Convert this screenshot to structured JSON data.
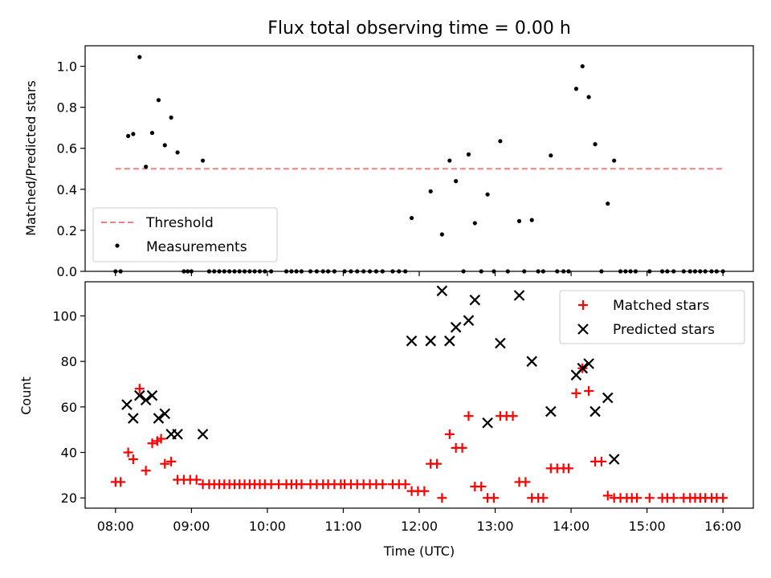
{
  "colors": {
    "measurements": "#000000",
    "threshold": "#f08080",
    "matched": "#ff0000",
    "predicted": "#000000"
  },
  "chart_data": [
    {
      "type": "scatter",
      "title": "Flux total observing time = 0.00 h",
      "xlabel": "",
      "ylabel": "Matched/Predicted stars",
      "xlim": [
        7.6,
        16.4
      ],
      "ylim": [
        0,
        1.1
      ],
      "yticks": [
        0,
        0.2,
        0.4,
        0.6,
        0.8,
        1.0
      ],
      "yticklabels": [
        "0.0",
        "0.2",
        "0.4",
        "0.6",
        "0.8",
        "1.0"
      ],
      "legend_placement": "lower-left",
      "threshold": {
        "name": "Threshold",
        "y": 0.5,
        "x_range": [
          8.0,
          16.0
        ],
        "style": "dashed"
      },
      "series": [
        {
          "name": "Measurements",
          "points": [
            [
              8.167,
              0.66
            ],
            [
              8.233,
              0.67
            ],
            [
              8.317,
              1.045
            ],
            [
              8.4,
              0.51
            ],
            [
              8.483,
              0.675
            ],
            [
              8.567,
              0.835
            ],
            [
              8.65,
              0.615
            ],
            [
              8.733,
              0.75
            ],
            [
              8.817,
              0.58
            ],
            [
              9.15,
              0.54
            ],
            [
              11.9,
              0.26
            ],
            [
              12.15,
              0.39
            ],
            [
              12.3,
              0.18
            ],
            [
              12.4,
              0.54
            ],
            [
              12.483,
              0.44
            ],
            [
              12.65,
              0.57
            ],
            [
              12.733,
              0.235
            ],
            [
              12.9,
              0.375
            ],
            [
              13.067,
              0.635
            ],
            [
              13.317,
              0.245
            ],
            [
              13.483,
              0.25
            ],
            [
              13.733,
              0.565
            ],
            [
              14.067,
              0.89
            ],
            [
              14.15,
              1.0
            ],
            [
              14.233,
              0.85
            ],
            [
              14.317,
              0.62
            ],
            [
              14.483,
              0.33
            ],
            [
              14.567,
              0.54
            ],
            [
              8.0,
              0
            ],
            [
              8.067,
              0
            ],
            [
              8.9,
              0
            ],
            [
              8.95,
              0
            ],
            [
              9.0,
              0
            ],
            [
              9.233,
              0
            ],
            [
              9.3,
              0
            ],
            [
              9.367,
              0
            ],
            [
              9.433,
              0
            ],
            [
              9.5,
              0
            ],
            [
              9.567,
              0
            ],
            [
              9.633,
              0
            ],
            [
              9.7,
              0
            ],
            [
              9.767,
              0
            ],
            [
              9.833,
              0
            ],
            [
              9.9,
              0
            ],
            [
              9.967,
              0
            ],
            [
              10.05,
              0
            ],
            [
              10.25,
              0
            ],
            [
              10.317,
              0
            ],
            [
              10.383,
              0
            ],
            [
              10.45,
              0
            ],
            [
              10.567,
              0
            ],
            [
              10.65,
              0
            ],
            [
              10.733,
              0
            ],
            [
              10.8,
              0
            ],
            [
              10.883,
              0
            ],
            [
              11.017,
              0
            ],
            [
              11.1,
              0
            ],
            [
              11.183,
              0
            ],
            [
              11.267,
              0
            ],
            [
              11.35,
              0
            ],
            [
              11.433,
              0
            ],
            [
              11.517,
              0
            ],
            [
              11.65,
              0
            ],
            [
              11.733,
              0
            ],
            [
              11.817,
              0
            ],
            [
              12.583,
              0
            ],
            [
              12.817,
              0
            ],
            [
              12.983,
              0
            ],
            [
              13.167,
              0
            ],
            [
              13.383,
              0
            ],
            [
              13.567,
              0
            ],
            [
              13.633,
              0
            ],
            [
              13.817,
              0
            ],
            [
              13.9,
              0
            ],
            [
              13.967,
              0
            ],
            [
              14.4,
              0
            ],
            [
              14.65,
              0
            ],
            [
              14.717,
              0
            ],
            [
              14.783,
              0
            ],
            [
              14.85,
              0
            ],
            [
              15.033,
              0
            ],
            [
              15.2,
              0
            ],
            [
              15.267,
              0
            ],
            [
              15.35,
              0
            ],
            [
              15.483,
              0
            ],
            [
              15.567,
              0
            ],
            [
              15.633,
              0
            ],
            [
              15.7,
              0
            ],
            [
              15.767,
              0
            ],
            [
              15.85,
              0
            ],
            [
              15.917,
              0
            ],
            [
              16.0,
              0
            ]
          ]
        }
      ]
    },
    {
      "type": "scatter",
      "title": "",
      "xlabel": "Time (UTC)",
      "ylabel": "Count",
      "xlim": [
        7.6,
        16.4
      ],
      "ylim": [
        15.5,
        115
      ],
      "yticks": [
        20,
        40,
        60,
        80,
        100
      ],
      "yticklabels": [
        "20",
        "40",
        "60",
        "80",
        "100"
      ],
      "xticks": [
        8,
        9,
        10,
        11,
        12,
        13,
        14,
        15,
        16
      ],
      "xticklabels": [
        "08:00",
        "09:00",
        "10:00",
        "11:00",
        "12:00",
        "13:00",
        "14:00",
        "15:00",
        "16:00"
      ],
      "legend_placement": "upper-right",
      "series": [
        {
          "name": "Matched stars",
          "marker": "+",
          "points": [
            [
              8.0,
              27
            ],
            [
              8.067,
              27
            ],
            [
              8.167,
              40
            ],
            [
              8.233,
              37
            ],
            [
              8.317,
              68
            ],
            [
              8.4,
              32
            ],
            [
              8.483,
              44
            ],
            [
              8.55,
              45
            ],
            [
              8.6,
              46
            ],
            [
              8.65,
              35
            ],
            [
              8.733,
              36
            ],
            [
              8.817,
              28
            ],
            [
              8.9,
              28
            ],
            [
              8.983,
              28
            ],
            [
              9.067,
              28
            ],
            [
              9.15,
              26
            ],
            [
              9.233,
              26
            ],
            [
              9.3,
              26
            ],
            [
              9.367,
              26
            ],
            [
              9.433,
              26
            ],
            [
              9.5,
              26
            ],
            [
              9.567,
              26
            ],
            [
              9.633,
              26
            ],
            [
              9.7,
              26
            ],
            [
              9.767,
              26
            ],
            [
              9.833,
              26
            ],
            [
              9.9,
              26
            ],
            [
              9.967,
              26
            ],
            [
              10.05,
              26
            ],
            [
              10.15,
              26
            ],
            [
              10.25,
              26
            ],
            [
              10.317,
              26
            ],
            [
              10.383,
              26
            ],
            [
              10.45,
              26
            ],
            [
              10.567,
              26
            ],
            [
              10.65,
              26
            ],
            [
              10.733,
              26
            ],
            [
              10.8,
              26
            ],
            [
              10.883,
              26
            ],
            [
              10.967,
              26
            ],
            [
              11.017,
              26
            ],
            [
              11.1,
              26
            ],
            [
              11.183,
              26
            ],
            [
              11.267,
              26
            ],
            [
              11.35,
              26
            ],
            [
              11.433,
              26
            ],
            [
              11.517,
              26
            ],
            [
              11.65,
              26
            ],
            [
              11.733,
              26
            ],
            [
              11.817,
              26
            ],
            [
              11.9,
              23
            ],
            [
              11.983,
              23
            ],
            [
              12.067,
              23
            ],
            [
              12.15,
              35
            ],
            [
              12.233,
              35
            ],
            [
              12.3,
              20
            ],
            [
              12.4,
              48
            ],
            [
              12.483,
              42
            ],
            [
              12.567,
              42
            ],
            [
              12.65,
              56
            ],
            [
              12.733,
              25
            ],
            [
              12.817,
              25
            ],
            [
              12.9,
              20
            ],
            [
              12.983,
              20
            ],
            [
              13.067,
              56
            ],
            [
              13.15,
              56
            ],
            [
              13.233,
              56
            ],
            [
              13.317,
              27
            ],
            [
              13.4,
              27
            ],
            [
              13.483,
              20
            ],
            [
              13.567,
              20
            ],
            [
              13.633,
              20
            ],
            [
              13.733,
              33
            ],
            [
              13.817,
              33
            ],
            [
              13.9,
              33
            ],
            [
              13.967,
              33
            ],
            [
              14.067,
              66
            ],
            [
              14.15,
              77
            ],
            [
              14.233,
              67
            ],
            [
              14.317,
              36
            ],
            [
              14.4,
              36
            ],
            [
              14.483,
              21
            ],
            [
              14.567,
              20
            ],
            [
              14.65,
              20
            ],
            [
              14.733,
              20
            ],
            [
              14.8,
              20
            ],
            [
              14.867,
              20
            ],
            [
              15.033,
              20
            ],
            [
              15.2,
              20
            ],
            [
              15.267,
              20
            ],
            [
              15.35,
              20
            ],
            [
              15.483,
              20
            ],
            [
              15.567,
              20
            ],
            [
              15.633,
              20
            ],
            [
              15.7,
              20
            ],
            [
              15.767,
              20
            ],
            [
              15.85,
              20
            ],
            [
              15.917,
              20
            ],
            [
              16.0,
              20
            ]
          ]
        },
        {
          "name": "Predicted stars",
          "marker": "x",
          "points": [
            [
              8.15,
              61
            ],
            [
              8.233,
              55
            ],
            [
              8.317,
              65
            ],
            [
              8.4,
              63
            ],
            [
              8.483,
              65
            ],
            [
              8.567,
              55
            ],
            [
              8.65,
              57
            ],
            [
              8.733,
              48
            ],
            [
              8.817,
              48
            ],
            [
              9.15,
              48
            ],
            [
              11.9,
              89
            ],
            [
              12.15,
              89
            ],
            [
              12.3,
              111
            ],
            [
              12.4,
              89
            ],
            [
              12.483,
              95
            ],
            [
              12.65,
              98
            ],
            [
              12.733,
              107
            ],
            [
              12.9,
              53
            ],
            [
              13.067,
              88
            ],
            [
              13.317,
              109
            ],
            [
              13.483,
              80
            ],
            [
              13.733,
              58
            ],
            [
              14.067,
              74
            ],
            [
              14.15,
              77
            ],
            [
              14.233,
              79
            ],
            [
              14.317,
              58
            ],
            [
              14.483,
              64
            ],
            [
              14.567,
              37
            ]
          ]
        }
      ]
    }
  ]
}
